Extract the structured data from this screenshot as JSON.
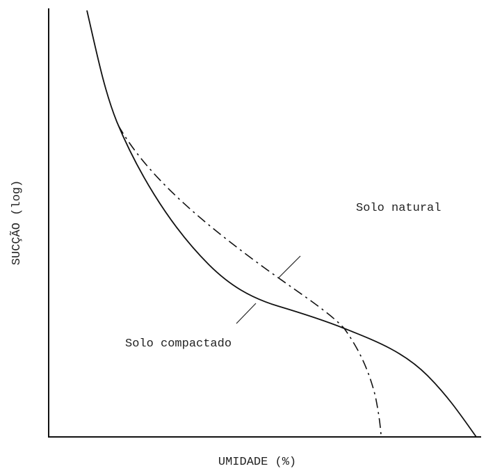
{
  "axes": {
    "x_label": "UMIDADE (%)",
    "y_label": "SUCÇÃO (log)"
  },
  "annotations": [
    "Solo natural",
    "Solo compactado"
  ]
}
